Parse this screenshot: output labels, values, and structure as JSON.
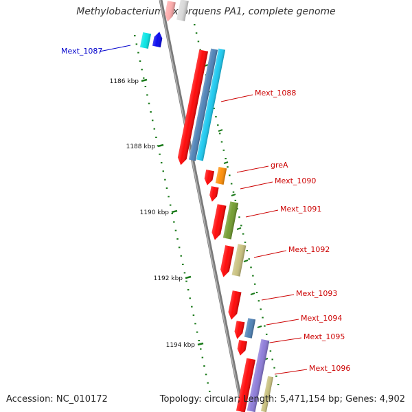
{
  "title": "Methylobacterium extorquens PA1, complete genome",
  "footer": {
    "accession_label": "Accession:",
    "accession": "NC_010172",
    "topology_label": "Topology:",
    "topology": "circular",
    "length_label": "Length:",
    "length": "5,471,154 bp",
    "genes_label": "Genes:",
    "genes": "4,902"
  },
  "scale_labels": [
    "1186 kbp",
    "1188 kbp",
    "1190 kbp",
    "1192 kbp",
    "1194 kbp"
  ],
  "gene_labels": [
    {
      "name": "Mext_1087",
      "side": "left",
      "color": "#0000cc"
    },
    {
      "name": "Mext_1088",
      "side": "right",
      "color": "#cc0000"
    },
    {
      "name": "greA",
      "side": "right",
      "color": "#cc0000"
    },
    {
      "name": "Mext_1090",
      "side": "right",
      "color": "#cc0000"
    },
    {
      "name": "Mext_1091",
      "side": "right",
      "color": "#cc0000"
    },
    {
      "name": "Mext_1092",
      "side": "right",
      "color": "#cc0000"
    },
    {
      "name": "Mext_1093",
      "side": "right",
      "color": "#cc0000"
    },
    {
      "name": "Mext_1094",
      "side": "right",
      "color": "#cc0000"
    },
    {
      "name": "Mext_1095",
      "side": "right",
      "color": "#cc0000"
    },
    {
      "name": "Mext_1096",
      "side": "right",
      "color": "#cc0000"
    }
  ],
  "colors": {
    "backbone": "#7f7f7f",
    "cds_strand": "#ff0000",
    "tick": "#1a7a1a",
    "label_line": "#cc0000"
  }
}
